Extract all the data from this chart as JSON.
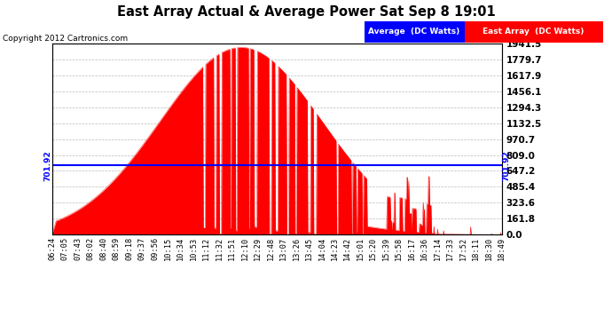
{
  "title": "East Array Actual & Average Power Sat Sep 8 19:01",
  "copyright": "Copyright 2012 Cartronics.com",
  "average_value": 701.92,
  "y_max": 1941.5,
  "y_min": 0.0,
  "y_ticks": [
    0.0,
    161.8,
    323.6,
    485.4,
    647.2,
    809.0,
    970.7,
    1132.5,
    1294.3,
    1456.1,
    1617.9,
    1779.7,
    1941.5
  ],
  "bg_color": "#ffffff",
  "plot_bg_color": "#ffffff",
  "grid_color": "#aaaaaa",
  "fill_color": "#ff0000",
  "avg_line_color": "#0000ff",
  "avg_label": "Average  (DC Watts)",
  "east_label": "East Array  (DC Watts)",
  "x_labels": [
    "06:24",
    "07:05",
    "07:43",
    "08:02",
    "08:40",
    "08:59",
    "09:18",
    "09:37",
    "09:56",
    "10:15",
    "10:34",
    "10:53",
    "11:12",
    "11:32",
    "11:51",
    "12:10",
    "12:29",
    "12:48",
    "13:07",
    "13:26",
    "13:45",
    "14:04",
    "14:23",
    "14:42",
    "15:01",
    "15:20",
    "15:39",
    "15:58",
    "16:17",
    "16:36",
    "17:14",
    "17:33",
    "17:52",
    "18:11",
    "18:30",
    "18:49"
  ]
}
